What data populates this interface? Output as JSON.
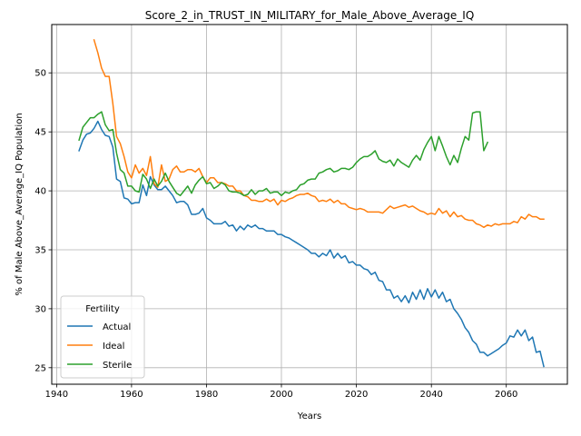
{
  "chart_data": {
    "type": "line",
    "title": "Score_2_in_TRUST_IN_MILITARY_for_Male_Above_Average_IQ",
    "xlabel": "Years",
    "ylabel": "% of Male Above_Average_IQ Population",
    "xlim": [
      1938.7,
      2076.3
    ],
    "ylim": [
      23.6,
      54.1
    ],
    "xticks": [
      1940,
      1960,
      1980,
      2000,
      2020,
      2040,
      2060
    ],
    "yticks": [
      25,
      30,
      35,
      40,
      45,
      50
    ],
    "grid": true,
    "legend": {
      "title": "Fertility",
      "placement": "lower-left"
    },
    "series": [
      {
        "name": "Actual",
        "color": "#1f77b4",
        "x": [
          1946,
          1947,
          1948,
          1949,
          1950,
          1951,
          1952,
          1953,
          1954,
          1955,
          1956,
          1957,
          1958,
          1959,
          1960,
          1961,
          1962,
          1963,
          1964,
          1965,
          1966,
          1967,
          1968,
          1969,
          1970,
          1971,
          1972,
          1973,
          1974,
          1975,
          1976,
          1977,
          1978,
          1979,
          1980,
          1981,
          1982,
          1983,
          1984,
          1985,
          1986,
          1987,
          1988,
          1989,
          1990,
          1991,
          1992,
          1993,
          1994,
          1995,
          1996,
          1997,
          1998,
          1999,
          2000,
          2001,
          2002,
          2003,
          2004,
          2005,
          2006,
          2007,
          2008,
          2009,
          2010,
          2011,
          2012,
          2013,
          2014,
          2015,
          2016,
          2017,
          2018,
          2019,
          2020,
          2021,
          2022,
          2023,
          2024,
          2025,
          2026,
          2027,
          2028,
          2029,
          2030,
          2031,
          2032,
          2033,
          2034,
          2035,
          2036,
          2037,
          2038,
          2039,
          2040,
          2041,
          2042,
          2043,
          2044,
          2045,
          2046,
          2047,
          2048,
          2049,
          2050,
          2051,
          2052,
          2053,
          2054,
          2055,
          2056,
          2057,
          2058,
          2059,
          2060,
          2061,
          2062,
          2063,
          2064,
          2065,
          2066,
          2067,
          2068,
          2069,
          2070
        ],
        "y": [
          43.4,
          44.3,
          44.8,
          44.9,
          45.3,
          45.9,
          45.2,
          44.7,
          44.6,
          43.7,
          41.0,
          40.8,
          39.4,
          39.3,
          38.9,
          39.0,
          39.0,
          40.5,
          39.6,
          41.2,
          40.5,
          40.1,
          40.1,
          40.4,
          40.0,
          39.6,
          39.0,
          39.1,
          39.1,
          38.8,
          38.0,
          38.0,
          38.1,
          38.5,
          37.7,
          37.5,
          37.2,
          37.2,
          37.2,
          37.4,
          37.0,
          37.1,
          36.6,
          37.0,
          36.7,
          37.1,
          36.9,
          37.1,
          36.8,
          36.8,
          36.6,
          36.6,
          36.6,
          36.3,
          36.3,
          36.1,
          36.0,
          35.8,
          35.6,
          35.4,
          35.2,
          35.0,
          34.7,
          34.7,
          34.4,
          34.7,
          34.5,
          35.0,
          34.3,
          34.7,
          34.3,
          34.5,
          33.9,
          34.0,
          33.7,
          33.7,
          33.4,
          33.3,
          32.9,
          33.1,
          32.4,
          32.3,
          31.6,
          31.6,
          30.9,
          31.1,
          30.6,
          31.1,
          30.5,
          31.4,
          30.8,
          31.6,
          30.8,
          31.7,
          31.0,
          31.6,
          30.9,
          31.4,
          30.6,
          30.8,
          30.0,
          29.6,
          29.1,
          28.4,
          28.0,
          27.3,
          27.0,
          26.3,
          26.3,
          26.0,
          26.2,
          26.4,
          26.6,
          26.9,
          27.1,
          27.7,
          27.6,
          28.2,
          27.7,
          28.2,
          27.3,
          27.6,
          26.3,
          26.4,
          25.1
        ]
      },
      {
        "name": "Ideal",
        "color": "#ff7f0e",
        "x": [
          1950,
          1951,
          1952,
          1953,
          1954,
          1955,
          1956,
          1957,
          1958,
          1959,
          1960,
          1961,
          1962,
          1963,
          1964,
          1965,
          1966,
          1967,
          1968,
          1969,
          1970,
          1971,
          1972,
          1973,
          1974,
          1975,
          1976,
          1977,
          1978,
          1979,
          1980,
          1981,
          1982,
          1983,
          1984,
          1985,
          1986,
          1987,
          1988,
          1989,
          1990,
          1991,
          1992,
          1993,
          1994,
          1995,
          1996,
          1997,
          1998,
          1999,
          2000,
          2001,
          2002,
          2003,
          2004,
          2005,
          2006,
          2007,
          2008,
          2009,
          2010,
          2011,
          2012,
          2013,
          2014,
          2015,
          2016,
          2017,
          2018,
          2019,
          2020,
          2021,
          2022,
          2023,
          2024,
          2025,
          2026,
          2027,
          2028,
          2029,
          2030,
          2031,
          2032,
          2033,
          2034,
          2035,
          2036,
          2037,
          2038,
          2039,
          2040,
          2041,
          2042,
          2043,
          2044,
          2045,
          2046,
          2047,
          2048,
          2049,
          2050,
          2051,
          2052,
          2053,
          2054,
          2055,
          2056,
          2057,
          2058,
          2059,
          2060,
          2061,
          2062,
          2063,
          2064,
          2065,
          2066,
          2067,
          2068,
          2069,
          2070
        ],
        "y": [
          52.8,
          51.7,
          50.4,
          49.7,
          49.7,
          47.4,
          44.6,
          44.0,
          42.9,
          41.6,
          41.1,
          42.2,
          41.5,
          41.9,
          41.3,
          42.9,
          40.6,
          40.3,
          42.2,
          40.8,
          41.0,
          41.8,
          42.1,
          41.6,
          41.6,
          41.8,
          41.8,
          41.6,
          41.9,
          41.2,
          40.7,
          41.1,
          41.1,
          40.7,
          40.7,
          40.6,
          40.4,
          40.4,
          40.0,
          40.0,
          39.6,
          39.5,
          39.2,
          39.2,
          39.1,
          39.1,
          39.3,
          39.1,
          39.3,
          38.8,
          39.2,
          39.1,
          39.3,
          39.4,
          39.6,
          39.7,
          39.7,
          39.8,
          39.6,
          39.5,
          39.1,
          39.2,
          39.1,
          39.3,
          39.0,
          39.2,
          38.9,
          38.9,
          38.6,
          38.5,
          38.4,
          38.5,
          38.4,
          38.2,
          38.2,
          38.2,
          38.2,
          38.1,
          38.4,
          38.7,
          38.5,
          38.6,
          38.7,
          38.8,
          38.6,
          38.7,
          38.5,
          38.3,
          38.2,
          38.0,
          38.1,
          38.0,
          38.5,
          38.1,
          38.3,
          37.8,
          38.2,
          37.8,
          37.9,
          37.6,
          37.5,
          37.5,
          37.2,
          37.1,
          36.9,
          37.1,
          37.0,
          37.2,
          37.1,
          37.2,
          37.2,
          37.2,
          37.4,
          37.3,
          37.8,
          37.6,
          38.0,
          37.8,
          37.8,
          37.6,
          37.6
        ]
      },
      {
        "name": "Sterile",
        "color": "#2ca02c",
        "x": [
          1946,
          1947,
          1948,
          1949,
          1950,
          1951,
          1952,
          1953,
          1954,
          1955,
          1956,
          1957,
          1958,
          1959,
          1960,
          1961,
          1962,
          1963,
          1964,
          1965,
          1966,
          1967,
          1968,
          1969,
          1970,
          1971,
          1972,
          1973,
          1974,
          1975,
          1976,
          1977,
          1978,
          1979,
          1980,
          1981,
          1982,
          1983,
          1984,
          1985,
          1986,
          1987,
          1988,
          1989,
          1990,
          1991,
          1992,
          1993,
          1994,
          1995,
          1996,
          1997,
          1998,
          1999,
          2000,
          2001,
          2002,
          2003,
          2004,
          2005,
          2006,
          2007,
          2008,
          2009,
          2010,
          2011,
          2012,
          2013,
          2014,
          2015,
          2016,
          2017,
          2018,
          2019,
          2020,
          2021,
          2022,
          2023,
          2024,
          2025,
          2026,
          2027,
          2028,
          2029,
          2030,
          2031,
          2032,
          2033,
          2034,
          2035,
          2036,
          2037,
          2038,
          2039,
          2040,
          2041,
          2042,
          2043,
          2044,
          2045,
          2046,
          2047,
          2048,
          2049,
          2050,
          2051,
          2052,
          2053,
          2054,
          2055
        ],
        "y": [
          44.3,
          45.4,
          45.8,
          46.2,
          46.2,
          46.5,
          46.7,
          45.6,
          45.1,
          45.2,
          43.2,
          41.8,
          41.5,
          40.4,
          40.4,
          40.0,
          39.9,
          41.4,
          41.0,
          40.2,
          41.0,
          40.4,
          40.8,
          41.5,
          40.8,
          40.3,
          39.8,
          39.6,
          40.0,
          40.4,
          39.8,
          40.5,
          40.9,
          41.2,
          40.6,
          40.7,
          40.2,
          40.4,
          40.7,
          40.5,
          40.0,
          39.9,
          39.9,
          39.8,
          39.6,
          39.7,
          40.1,
          39.7,
          40.0,
          40.0,
          40.2,
          39.8,
          39.9,
          39.9,
          39.6,
          39.9,
          39.8,
          40.0,
          40.1,
          40.5,
          40.6,
          40.9,
          41.0,
          41.0,
          41.5,
          41.6,
          41.8,
          41.9,
          41.6,
          41.7,
          41.9,
          41.9,
          41.8,
          42.0,
          42.4,
          42.7,
          42.9,
          42.9,
          43.1,
          43.4,
          42.7,
          42.5,
          42.4,
          42.6,
          42.1,
          42.7,
          42.4,
          42.2,
          42.0,
          42.6,
          43.0,
          42.6,
          43.5,
          44.1,
          44.6,
          43.4,
          44.6,
          43.8,
          42.9,
          42.2,
          43.0,
          42.4,
          43.6,
          44.6,
          44.3,
          46.6,
          46.7,
          46.7,
          43.4,
          44.1
        ]
      }
    ]
  }
}
